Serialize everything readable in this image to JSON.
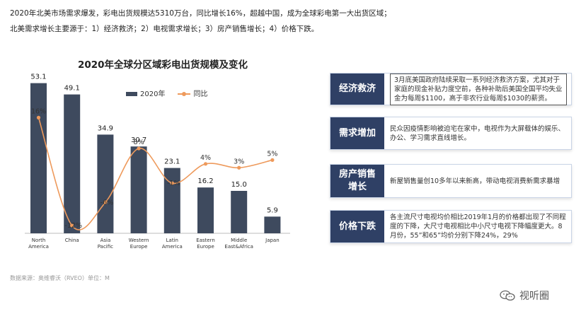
{
  "intro": {
    "line1": "2020年北美市场需求爆发，彩电出货规模达5310万台，同比增长16%，超越中国，成为全球彩电第一大出货区域；",
    "line2": "北美需求增长主要源于：1）经济救济；2）电视需求增长；3）房产销售增长；4）价格下跌。"
  },
  "source": "数据来源：奥维睿沃（RVEO）单位：M",
  "watermark": {
    "text": "视听圈",
    "icon": "wechat-icon"
  },
  "colors": {
    "bar": "#3e4a5e",
    "line": "#ee9a5c",
    "panel_tag": "#2f4065"
  },
  "panels": [
    {
      "tag": "经济救济",
      "desc": "3月底美国政府陆续采取一系列经济救济方案，尤其对于家庭的现金补贴力度空前，各种补助后美国全国平均失业金为每周$1100，高于非农行业每周$1030的薪资。",
      "boxed": true
    },
    {
      "tag": "需求增加",
      "desc": "民众因疫情影响被迫宅在家中，电视作为大屏载体的娱乐、办公、学习需求直线增长。"
    },
    {
      "tag": "房产销售增长",
      "desc": "新屋销售量创10多年以来新高，带动电视消费新需求暴增"
    },
    {
      "tag": "价格下跌",
      "desc": "各主流尺寸电视均价相比2019年1月的价格都出现了不同程度的下降，大尺寸电视相比中小尺寸电视下降幅度更大。8月份，55”和65”均价分别下降24%，29%"
    }
  ],
  "chart_data": {
    "type": "bar",
    "title": "2020年全球分区域彩电出货规模及变化",
    "categories": [
      "North America",
      "China",
      "Asia Pacific",
      "Western Europe",
      "Latin America",
      "Eastern Europe",
      "Middle East&Africa",
      "Japan"
    ],
    "series": [
      {
        "name": "2020年",
        "type": "bar",
        "values": [
          53.1,
          49.1,
          34.9,
          30.7,
          23.1,
          16.2,
          15.0,
          5.9
        ],
        "labels": [
          "53.1",
          "49.1",
          "34.9",
          "30.7",
          "23.1",
          "16.2",
          "15.0",
          "5.9"
        ]
      },
      {
        "name": "同比",
        "type": "line",
        "values": [
          16,
          -12,
          -6,
          8,
          -1,
          4,
          3,
          5
        ],
        "labels": [
          "16%",
          "-12%",
          "-6%",
          "8%",
          "-1%",
          "4%",
          "3%",
          "5%"
        ]
      }
    ],
    "ylim": [
      0,
      60
    ],
    "y2lim": [
      -14,
      30
    ],
    "grid": false,
    "legend": "top"
  }
}
